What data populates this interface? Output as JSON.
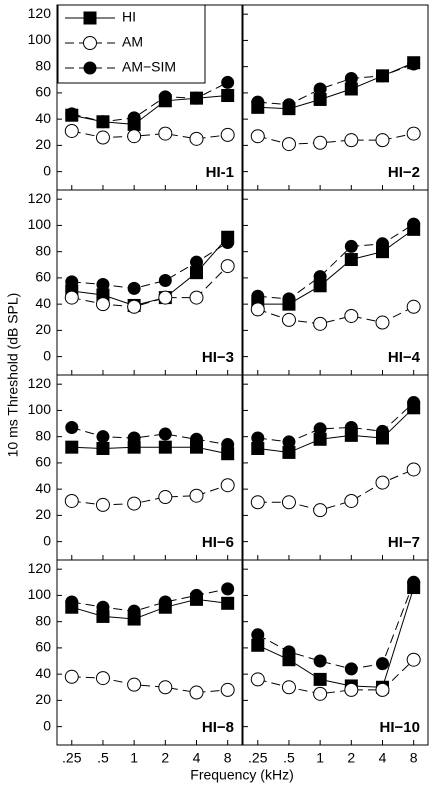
{
  "ylabel": "10 ms Threshold (dB SPL)",
  "xlabel": "Frequency (kHz)",
  "chart_data": [
    {
      "type": "line",
      "title": "HI-1",
      "legend": "upper left",
      "show_yticklabels": true,
      "xscale": "log",
      "xlim": [
        0.18,
        11
      ],
      "ylim": [
        -14,
        127
      ],
      "xticks": [
        0.25,
        0.5,
        1,
        2,
        4,
        8
      ],
      "yticks": [
        0,
        20,
        40,
        60,
        80,
        100,
        120
      ],
      "x": [
        0.25,
        0.5,
        1,
        2,
        4,
        8
      ],
      "series": [
        {
          "name": "HI",
          "color": "#000000",
          "marker": "square",
          "dash": false,
          "values": [
            43,
            38,
            36,
            54,
            56,
            58
          ]
        },
        {
          "name": "AM",
          "color": "#000000",
          "marker": "open-circle",
          "dash": true,
          "values": [
            31,
            26,
            27,
            29,
            25,
            28
          ]
        },
        {
          "name": "AM−SIM",
          "color": "#000000",
          "marker": "circle",
          "dash": true,
          "values": [
            44,
            38,
            41,
            57,
            56,
            68
          ]
        }
      ]
    },
    {
      "type": "line",
      "title": "HI−2",
      "show_yticklabels": false,
      "xscale": "log",
      "xlim": [
        0.18,
        11
      ],
      "ylim": [
        -14,
        127
      ],
      "xticks": [
        0.25,
        0.5,
        1,
        2,
        4,
        8
      ],
      "yticks": [
        0,
        20,
        40,
        60,
        80,
        100,
        120
      ],
      "x": [
        0.25,
        0.5,
        1,
        2,
        4,
        8
      ],
      "series": [
        {
          "color": "#000000",
          "marker": "square",
          "dash": false,
          "values": [
            49,
            48,
            55,
            63,
            73,
            83
          ]
        },
        {
          "color": "#000000",
          "marker": "open-circle",
          "dash": true,
          "values": [
            27,
            21,
            22,
            24,
            24,
            29
          ]
        },
        {
          "color": "#000000",
          "marker": "circle",
          "dash": true,
          "values": [
            53,
            51,
            63,
            71,
            73,
            82
          ]
        }
      ]
    },
    {
      "type": "line",
      "title": "HI−3",
      "show_yticklabels": true,
      "xscale": "log",
      "xlim": [
        0.18,
        11
      ],
      "ylim": [
        -14,
        127
      ],
      "xticks": [
        0.25,
        0.5,
        1,
        2,
        4,
        8
      ],
      "yticks": [
        0,
        20,
        40,
        60,
        80,
        100,
        120
      ],
      "x": [
        0.25,
        0.5,
        1,
        2,
        4,
        8
      ],
      "series": [
        {
          "color": "#000000",
          "marker": "square",
          "dash": false,
          "values": [
            50,
            47,
            39,
            45,
            64,
            91
          ]
        },
        {
          "color": "#000000",
          "marker": "open-circle",
          "dash": true,
          "values": [
            45,
            40,
            38,
            45,
            45,
            69
          ]
        },
        {
          "color": "#000000",
          "marker": "circle",
          "dash": true,
          "values": [
            57,
            55,
            52,
            58,
            72,
            87
          ]
        }
      ]
    },
    {
      "type": "line",
      "title": "HI−4",
      "show_yticklabels": false,
      "xscale": "log",
      "xlim": [
        0.18,
        11
      ],
      "ylim": [
        -14,
        127
      ],
      "xticks": [
        0.25,
        0.5,
        1,
        2,
        4,
        8
      ],
      "yticks": [
        0,
        20,
        40,
        60,
        80,
        100,
        120
      ],
      "x": [
        0.25,
        0.5,
        1,
        2,
        4,
        8
      ],
      "series": [
        {
          "color": "#000000",
          "marker": "square",
          "dash": false,
          "values": [
            40,
            40,
            54,
            74,
            80,
            97
          ]
        },
        {
          "color": "#000000",
          "marker": "open-circle",
          "dash": true,
          "values": [
            36,
            28,
            25,
            31,
            26,
            38
          ]
        },
        {
          "color": "#000000",
          "marker": "circle",
          "dash": true,
          "values": [
            46,
            44,
            61,
            84,
            86,
            101
          ]
        }
      ]
    },
    {
      "type": "line",
      "title": "HI−6",
      "show_yticklabels": true,
      "xscale": "log",
      "xlim": [
        0.18,
        11
      ],
      "ylim": [
        -14,
        127
      ],
      "xticks": [
        0.25,
        0.5,
        1,
        2,
        4,
        8
      ],
      "yticks": [
        0,
        20,
        40,
        60,
        80,
        100,
        120
      ],
      "x": [
        0.25,
        0.5,
        1,
        2,
        4,
        8
      ],
      "series": [
        {
          "color": "#000000",
          "marker": "square",
          "dash": false,
          "values": [
            72,
            71,
            72,
            72,
            72,
            67
          ]
        },
        {
          "color": "#000000",
          "marker": "open-circle",
          "dash": true,
          "values": [
            31,
            28,
            29,
            34,
            35,
            43
          ]
        },
        {
          "color": "#000000",
          "marker": "circle",
          "dash": true,
          "values": [
            87,
            80,
            79,
            82,
            78,
            74
          ]
        }
      ]
    },
    {
      "type": "line",
      "title": "HI−7",
      "show_yticklabels": false,
      "xscale": "log",
      "xlim": [
        0.18,
        11
      ],
      "ylim": [
        -14,
        127
      ],
      "xticks": [
        0.25,
        0.5,
        1,
        2,
        4,
        8
      ],
      "yticks": [
        0,
        20,
        40,
        60,
        80,
        100,
        120
      ],
      "x": [
        0.25,
        0.5,
        1,
        2,
        4,
        8
      ],
      "series": [
        {
          "color": "#000000",
          "marker": "square",
          "dash": false,
          "values": [
            71,
            68,
            78,
            81,
            79,
            102
          ]
        },
        {
          "color": "#000000",
          "marker": "open-circle",
          "dash": true,
          "values": [
            30,
            30,
            24,
            31,
            45,
            55
          ]
        },
        {
          "color": "#000000",
          "marker": "circle",
          "dash": true,
          "values": [
            79,
            76,
            86,
            87,
            84,
            106
          ]
        }
      ]
    },
    {
      "type": "line",
      "title": "HI−8",
      "show_yticklabels": true,
      "xscale": "log",
      "xlim": [
        0.18,
        11
      ],
      "ylim": [
        -14,
        127
      ],
      "xticks": [
        {
          "value": 0.25,
          "label": ".25"
        },
        {
          "value": 0.5,
          "label": ".5"
        },
        1,
        2,
        4,
        8
      ],
      "yticks": [
        0,
        20,
        40,
        60,
        80,
        100,
        120
      ],
      "x": [
        0.25,
        0.5,
        1,
        2,
        4,
        8
      ],
      "series": [
        {
          "color": "#000000",
          "marker": "square",
          "dash": false,
          "values": [
            91,
            84,
            82,
            91,
            97,
            94
          ]
        },
        {
          "color": "#000000",
          "marker": "open-circle",
          "dash": true,
          "values": [
            38,
            37,
            32,
            30,
            26,
            28
          ]
        },
        {
          "color": "#000000",
          "marker": "circle",
          "dash": true,
          "values": [
            95,
            91,
            88,
            95,
            100,
            105
          ]
        }
      ]
    },
    {
      "type": "line",
      "title": "HI−10",
      "show_yticklabels": false,
      "xscale": "log",
      "xlim": [
        0.18,
        11
      ],
      "ylim": [
        -14,
        127
      ],
      "xticks": [
        {
          "value": 0.25,
          "label": ".25"
        },
        {
          "value": 0.5,
          "label": ".5"
        },
        1,
        2,
        4,
        8
      ],
      "yticks": [
        0,
        20,
        40,
        60,
        80,
        100,
        120
      ],
      "x": [
        0.25,
        0.5,
        1,
        2,
        4,
        8
      ],
      "series": [
        {
          "color": "#000000",
          "marker": "square",
          "dash": false,
          "values": [
            62,
            51,
            36,
            31,
            30,
            106
          ]
        },
        {
          "color": "#000000",
          "marker": "open-circle",
          "dash": true,
          "values": [
            36,
            30,
            25,
            28,
            28,
            51
          ]
        },
        {
          "color": "#000000",
          "marker": "circle",
          "dash": true,
          "values": [
            70,
            57,
            50,
            44,
            48,
            110
          ]
        }
      ]
    }
  ]
}
